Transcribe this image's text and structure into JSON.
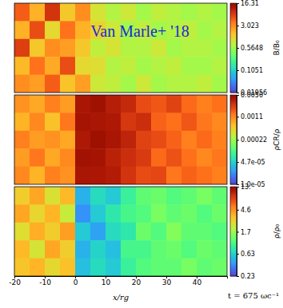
{
  "chart_data": [
    {
      "type": "heatmap",
      "log": true,
      "tick_labels": false,
      "annotation": "Van Marle+ '18",
      "xlim": [
        -20,
        50
      ],
      "x": [
        -20,
        -15,
        -10,
        -5,
        0,
        5,
        10,
        15,
        20,
        25,
        30,
        35,
        40,
        45,
        50
      ],
      "cells": [
        [
          5,
          2,
          8,
          1.5,
          3,
          1.0,
          0.7,
          0.9,
          0.6,
          0.8,
          0.7,
          0.6,
          0.7,
          0.6
        ],
        [
          2,
          6,
          1.2,
          4,
          2,
          1.3,
          0.9,
          0.6,
          0.8,
          0.6,
          0.7,
          0.8,
          0.6,
          0.7
        ],
        [
          7,
          1.5,
          3,
          2.5,
          1.5,
          0.8,
          1.0,
          0.7,
          0.7,
          0.9,
          0.6,
          0.7,
          0.7,
          0.6
        ],
        [
          1.8,
          4,
          2.2,
          6,
          1.2,
          1.1,
          0.7,
          0.8,
          0.6,
          0.7,
          0.8,
          0.6,
          0.6,
          0.7
        ],
        [
          3,
          2.5,
          5,
          1.6,
          2.5,
          0.9,
          0.8,
          0.6,
          0.9,
          0.6,
          0.7,
          0.7,
          0.8,
          0.6
        ]
      ],
      "colorbar": {
        "label": "B/B₀",
        "lim": [
          0.01956,
          16.31
        ],
        "ticks": [
          16.31,
          3.023,
          0.5648,
          0.1051,
          0.01956
        ]
      }
    },
    {
      "type": "heatmap",
      "log": true,
      "tick_labels": false,
      "xlim": [
        -20,
        50
      ],
      "x": [
        -20,
        -15,
        -10,
        -5,
        0,
        5,
        10,
        15,
        20,
        25,
        30,
        35,
        40,
        45,
        50
      ],
      "cells": [
        [
          0.001,
          0.0008,
          0.0012,
          0.0009,
          0.004,
          0.0045,
          0.0035,
          0.003,
          0.002,
          0.0018,
          0.0022,
          0.0015,
          0.0012,
          0.0014
        ],
        [
          0.0007,
          0.0011,
          0.0006,
          0.0013,
          0.0042,
          0.004,
          0.0038,
          0.0025,
          0.0028,
          0.0016,
          0.0014,
          0.0018,
          0.0013,
          0.0011
        ],
        [
          0.0012,
          0.0009,
          0.001,
          0.0008,
          0.0038,
          0.0046,
          0.004,
          0.0032,
          0.0022,
          0.002,
          0.0016,
          0.0012,
          0.0015,
          0.0012
        ],
        [
          0.0009,
          0.0013,
          0.0008,
          0.0011,
          0.0044,
          0.0042,
          0.0033,
          0.0028,
          0.0024,
          0.0015,
          0.0019,
          0.0014,
          0.0011,
          0.0013
        ],
        [
          0.0011,
          0.0007,
          0.0012,
          0.001,
          0.004,
          0.0039,
          0.0036,
          0.0026,
          0.002,
          0.0021,
          0.0013,
          0.0016,
          0.0014,
          0.0012
        ]
      ],
      "colorbar": {
        "label": "ρCR/ρ",
        "lim": [
          1e-05,
          0.005
        ],
        "ticks": [
          {
            "value": 0.005,
            "label": "0.0050"
          },
          0.0011,
          0.00022,
          {
            "value": 4.7e-05,
            "label": "4.7e-05"
          },
          {
            "value": 1e-05,
            "label": "1.0e-05"
          }
        ]
      }
    },
    {
      "type": "heatmap",
      "log": true,
      "tick_labels": "x",
      "annotation": "t = 675 ωc⁻¹",
      "xlabel": "x/rg",
      "xlim": [
        -20,
        50
      ],
      "xticks": [
        -20,
        -10,
        0,
        10,
        20,
        30,
        40
      ],
      "x": [
        -20,
        -15,
        -10,
        -5,
        0,
        5,
        10,
        15,
        20,
        25,
        30,
        35,
        40,
        45,
        50
      ],
      "cells": [
        [
          3,
          4,
          2.5,
          3.5,
          0.5,
          0.7,
          0.6,
          0.9,
          1.2,
          1.3,
          1.1,
          1.2,
          1.4,
          1.2
        ],
        [
          4,
          2.8,
          3.6,
          2.2,
          0.4,
          0.6,
          0.8,
          1.0,
          1.1,
          1.4,
          1.2,
          1.3,
          1.1,
          1.3
        ],
        [
          2.6,
          3.8,
          3,
          4.2,
          0.6,
          0.45,
          0.7,
          0.8,
          1.3,
          1.1,
          1.5,
          1.2,
          1.2,
          1.1
        ],
        [
          3.5,
          2.4,
          4,
          3,
          0.5,
          0.65,
          0.55,
          1.0,
          1.0,
          1.2,
          1.3,
          1.1,
          1.3,
          1.2
        ],
        [
          3.2,
          3.6,
          2.7,
          3.3,
          0.55,
          0.7,
          0.6,
          0.9,
          1.1,
          1.2,
          1.2,
          1.4,
          1.2,
          1.3
        ]
      ],
      "colorbar": {
        "label": "ρ/ρ₀",
        "lim": [
          0.23,
          13
        ],
        "ticks": [
          {
            "value": 13,
            "label": "13."
          },
          4.6,
          1.7,
          0.63,
          0.23
        ]
      }
    }
  ]
}
